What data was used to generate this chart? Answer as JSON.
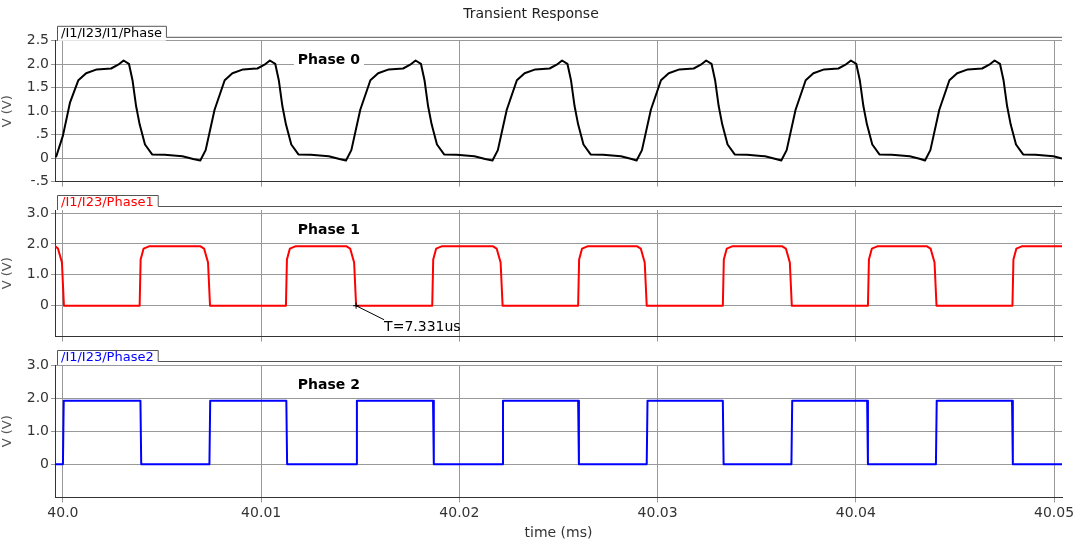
{
  "chart_data": [
    {
      "type": "line",
      "title": "Transient Response",
      "ylabel": "V (V)",
      "legend": "top left",
      "grid": true,
      "tick_labels": "y",
      "xlim": [
        39.9996,
        40.0504
      ],
      "xticks": [
        40,
        40.01,
        40.02,
        40.03,
        40.04,
        40.05
      ],
      "ylim": [
        -0.5,
        2.5
      ],
      "yticks": [
        {
          "value": -0.5,
          "label": "-.5"
        },
        0,
        {
          "value": 0.5,
          "label": ".5"
        },
        {
          "value": 1,
          "label": "1.0"
        },
        1.5,
        {
          "value": 2,
          "label": "2.0"
        },
        2.5
      ],
      "annotations": [
        "Phase 0"
      ],
      "series": [
        {
          "name": "/I1/I23/I1/Phase",
          "color": "#000000",
          "x": [
            39.99965,
            40.0,
            40.00036,
            40.00078,
            40.00117,
            40.00171,
            40.00243,
            40.00279,
            40.00306,
            40.00333,
            40.00351,
            40.00369,
            40.00387,
            40.00414,
            40.0045,
            40.00513,
            40.00603,
            40.00657,
            40.00693,
            40.0072,
            40.00765,
            40.00816,
            40.00855,
            40.00909,
            40.00981,
            40.01017,
            40.01044,
            40.01071,
            40.01089,
            40.01107,
            40.01125,
            40.01152,
            40.01188,
            40.01251,
            40.01341,
            40.01395,
            40.01428,
            40.01455,
            40.015,
            40.01551,
            40.0159,
            40.01644,
            40.01716,
            40.01752,
            40.01779,
            40.01806,
            40.01824,
            40.01842,
            40.0186,
            40.01887,
            40.01923,
            40.01986,
            40.02076,
            40.0213,
            40.02167,
            40.02194,
            40.02239,
            40.0229,
            40.02329,
            40.02383,
            40.02455,
            40.02491,
            40.02518,
            40.02545,
            40.02563,
            40.02581,
            40.02599,
            40.02626,
            40.02662,
            40.02725,
            40.02815,
            40.02869,
            40.02894,
            40.02921,
            40.02966,
            40.03017,
            40.03056,
            40.0311,
            40.03182,
            40.03218,
            40.03245,
            40.03272,
            40.0329,
            40.03308,
            40.03326,
            40.03353,
            40.03389,
            40.03452,
            40.03542,
            40.03596,
            40.03624,
            40.03651,
            40.03696,
            40.03747,
            40.03786,
            40.0384,
            40.03912,
            40.03948,
            40.03975,
            40.04002,
            40.0402,
            40.04038,
            40.04056,
            40.04083,
            40.04119,
            40.04182,
            40.04272,
            40.04326,
            40.04349,
            40.04376,
            40.04421,
            40.04472,
            40.04511,
            40.04565,
            40.04637,
            40.04673,
            40.047,
            40.04727,
            40.04745,
            40.04763,
            40.04781,
            40.04808,
            40.04844,
            40.04907,
            40.04997,
            40.0504
          ],
          "values": [
            0.02,
            0.48,
            1.19,
            1.66,
            1.81,
            1.89,
            1.91,
            1.99,
            2.08,
            2.01,
            1.66,
            1.11,
            0.72,
            0.29,
            0.08,
            0.07,
            0.04,
            -0.02,
            -0.05,
            0.17,
            1.03,
            1.66,
            1.81,
            1.89,
            1.91,
            1.99,
            2.08,
            2.01,
            1.66,
            1.11,
            0.72,
            0.29,
            0.08,
            0.07,
            0.04,
            -0.02,
            -0.05,
            0.17,
            1.03,
            1.66,
            1.81,
            1.89,
            1.91,
            1.99,
            2.08,
            2.01,
            1.66,
            1.11,
            0.72,
            0.29,
            0.08,
            0.07,
            0.04,
            -0.02,
            -0.05,
            0.17,
            1.03,
            1.66,
            1.81,
            1.89,
            1.91,
            1.99,
            2.08,
            2.01,
            1.66,
            1.11,
            0.72,
            0.29,
            0.08,
            0.07,
            0.04,
            -0.02,
            -0.05,
            0.17,
            1.03,
            1.66,
            1.81,
            1.89,
            1.91,
            1.99,
            2.08,
            2.01,
            1.66,
            1.11,
            0.72,
            0.29,
            0.08,
            0.07,
            0.04,
            -0.02,
            -0.05,
            0.17,
            1.03,
            1.66,
            1.81,
            1.89,
            1.91,
            1.99,
            2.08,
            2.01,
            1.66,
            1.11,
            0.72,
            0.29,
            0.08,
            0.07,
            0.04,
            -0.02,
            -0.05,
            0.17,
            1.03,
            1.66,
            1.81,
            1.89,
            1.91,
            1.99,
            2.08,
            2.01,
            1.66,
            1.11,
            0.72,
            0.29,
            0.08,
            0.07,
            0.04,
            -0.01
          ]
        }
      ]
    },
    {
      "type": "line",
      "ylabel": "V (V)",
      "legend": "top left",
      "grid": true,
      "tick_labels": "y",
      "xlim": [
        39.9996,
        40.0504
      ],
      "xticks": [
        40,
        40.01,
        40.02,
        40.03,
        40.04,
        40.05
      ],
      "ylim": [
        -1,
        3.1
      ],
      "yticks": [
        0,
        {
          "value": 1,
          "label": "1.0"
        },
        {
          "value": 2,
          "label": "2.0"
        },
        {
          "value": 3,
          "label": "3.0"
        }
      ],
      "annotations": [
        "Phase 1",
        {
          "text": "T=7.331us",
          "x": 40.01479,
          "y": 0
        }
      ],
      "series": [
        {
          "name": "/I1/I23/Phase1",
          "color": "#ff0000",
          "x": [
            39.9996,
            39.99975,
            39.99995,
            40.00005,
            40.00387,
            40.00392,
            40.00407,
            40.00437,
            40.00692,
            40.00712,
            40.00732,
            40.00742,
            40.01125,
            40.0113,
            40.01145,
            40.01175,
            40.01429,
            40.01449,
            40.01469,
            40.01479,
            40.01863,
            40.01868,
            40.01883,
            40.01913,
            40.02168,
            40.02188,
            40.02208,
            40.02218,
            40.02599,
            40.02604,
            40.02619,
            40.02649,
            40.02895,
            40.02915,
            40.02935,
            40.02945,
            40.03329,
            40.03334,
            40.03349,
            40.03379,
            40.03627,
            40.03647,
            40.03667,
            40.03677,
            40.04061,
            40.04066,
            40.04081,
            40.04111,
            40.04357,
            40.04377,
            40.04397,
            40.04407,
            40.0479,
            40.04795,
            40.0481,
            40.0484,
            40.0504
          ],
          "values": [
            1.93,
            1.85,
            1.4,
            0,
            0,
            1.5,
            1.85,
            1.93,
            1.93,
            1.85,
            1.4,
            0,
            0,
            1.5,
            1.85,
            1.93,
            1.93,
            1.85,
            1.4,
            0,
            0,
            1.5,
            1.85,
            1.93,
            1.93,
            1.85,
            1.4,
            0,
            0,
            1.5,
            1.85,
            1.93,
            1.93,
            1.85,
            1.4,
            0,
            0,
            1.5,
            1.85,
            1.93,
            1.93,
            1.85,
            1.4,
            0,
            0,
            1.5,
            1.85,
            1.93,
            1.93,
            1.85,
            1.4,
            0,
            0,
            1.5,
            1.85,
            1.93,
            1.93
          ]
        }
      ]
    },
    {
      "type": "line",
      "ylabel": "V (V)",
      "xlabel": "time (ms)",
      "legend": "top left",
      "grid": true,
      "xlim": [
        39.9996,
        40.0504
      ],
      "xticks": [
        {
          "value": 40,
          "label": "40.0"
        },
        40.01,
        40.02,
        40.03,
        40.04,
        40.05
      ],
      "ylim": [
        -1,
        3
      ],
      "yticks": [
        0,
        {
          "value": 1,
          "label": "1.0"
        },
        {
          "value": 2,
          "label": "2.0"
        },
        {
          "value": 3,
          "label": "3.0"
        }
      ],
      "annotations": [
        "Phase 2"
      ],
      "series": [
        {
          "name": "/I1/I23/Phase2",
          "color": "#0000ff",
          "x": [
            39.9996,
            40.0,
            40.00004,
            40.00391,
            40.00395,
            40.00739,
            40.00743,
            40.01127,
            40.01131,
            40.01479,
            40.01483,
            40.01867,
            40.01871,
            40.02216,
            40.0222,
            40.02599,
            40.02603,
            40.02945,
            40.02949,
            40.03329,
            40.03333,
            40.03675,
            40.03679,
            40.04057,
            40.04061,
            40.04404,
            40.04408,
            40.04788,
            40.04792,
            40.0504
          ],
          "values": [
            0,
            0,
            1.92,
            1.92,
            0,
            0,
            1.92,
            1.92,
            0,
            0,
            1.92,
            1.92,
            0,
            0,
            1.92,
            1.92,
            0,
            0,
            1.92,
            1.92,
            0,
            0,
            1.92,
            1.92,
            0,
            0,
            1.92,
            1.92,
            0,
            0
          ]
        }
      ]
    }
  ]
}
